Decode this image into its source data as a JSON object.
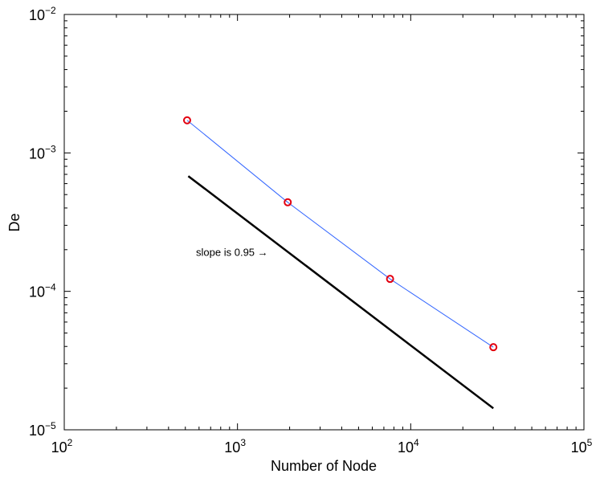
{
  "chart_data": {
    "type": "line",
    "xlabel": "Number of Node",
    "ylabel": "De",
    "xscale": "log",
    "yscale": "log",
    "xlim": [
      100,
      100000
    ],
    "ylim": [
      1e-05,
      0.01
    ],
    "grid": false,
    "x_ticks": [
      {
        "base": "10",
        "exp": "2"
      },
      {
        "base": "10",
        "exp": "3"
      },
      {
        "base": "10",
        "exp": "4"
      },
      {
        "base": "10",
        "exp": "5"
      }
    ],
    "y_ticks": [
      {
        "base": "10",
        "exp": "−5"
      },
      {
        "base": "10",
        "exp": "−4"
      },
      {
        "base": "10",
        "exp": "−3"
      },
      {
        "base": "10",
        "exp": "−2"
      }
    ],
    "series": [
      {
        "x": [
          512,
          1950,
          7600,
          30000
        ],
        "y": [
          0.00172,
          0.00044,
          0.000123,
          3.95e-05
        ],
        "color": "#3366ff",
        "marker": "o",
        "marker_color": "#e3000f"
      },
      {
        "x": [
          520,
          30000
        ],
        "y": [
          0.00068,
          1.43e-05
        ],
        "color": "#000000",
        "marker": "none"
      }
    ],
    "annotations": [
      {
        "text": "slope is 0.95",
        "arrow": "→",
        "x": 1500,
        "y": 0.00019
      }
    ],
    "legend": "none"
  }
}
